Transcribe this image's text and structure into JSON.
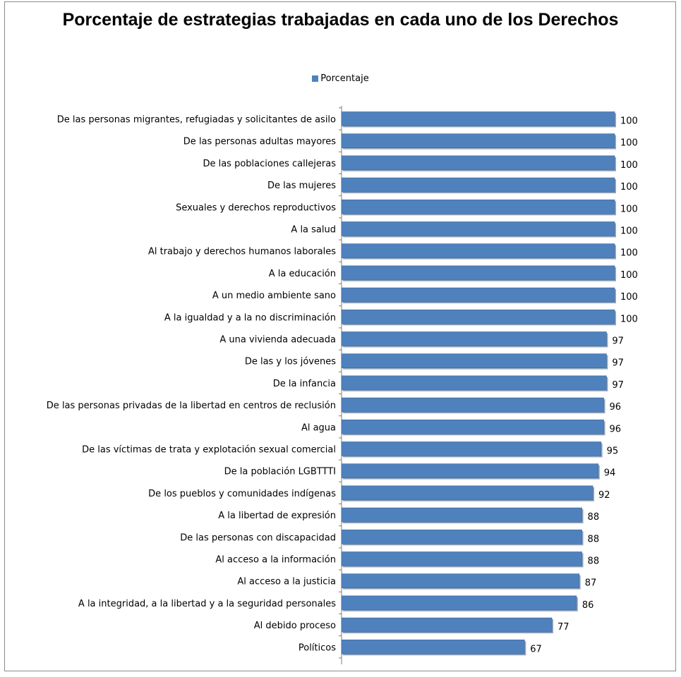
{
  "chart_data": {
    "type": "bar",
    "orientation": "horizontal",
    "title": "Porcentaje de estrategias trabajadas en cada uno de los Derechos",
    "legend": {
      "placement": "top-center",
      "entries": [
        "Porcentaje"
      ]
    },
    "series": [
      {
        "name": "Porcentaje",
        "color": "#4F81BD",
        "values": [
          100,
          100,
          100,
          100,
          100,
          100,
          100,
          100,
          100,
          100,
          97,
          97,
          97,
          96,
          96,
          95,
          94,
          92,
          88,
          88,
          88,
          87,
          86,
          77,
          67
        ]
      }
    ],
    "categories": [
      "De las personas migrantes, refugiadas y solicitantes de asilo",
      "De las personas adultas mayores",
      "De las poblaciones callejeras",
      "De las mujeres",
      "Sexuales y derechos reproductivos",
      "A la salud",
      "Al trabajo y derechos humanos laborales",
      "A la educación",
      "A un medio ambiente sano",
      "A la igualdad y a la no discriminación",
      "A una vivienda adecuada",
      "De las y los jóvenes",
      "De la infancia",
      "De las personas privadas de la libertad en centros de reclusión",
      "Al agua",
      "De las víctimas de trata y explotación sexual comercial",
      "De la población LGBTTTI",
      "De los pueblos y comunidades indígenas",
      "A la libertad de expresión",
      "De las personas con discapacidad",
      "Al acceso a la información",
      "Al acceso a la justicia",
      "A la integridad, a la libertad y a la seguridad personales",
      "Al debido proceso",
      "Políticos"
    ],
    "xlim": [
      0,
      100
    ],
    "grid": false,
    "data_labels": true
  }
}
